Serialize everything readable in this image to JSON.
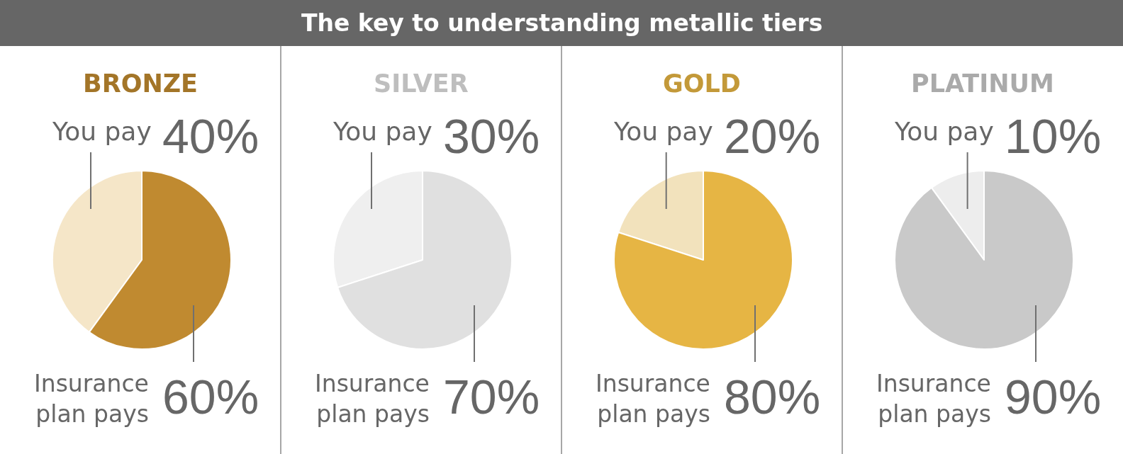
{
  "chart_data": [
    {
      "type": "other",
      "title": "The key to understanding metallic tiers"
    },
    {
      "type": "pie",
      "title": "BRONZE",
      "categories": [
        "You pay",
        "Insurance plan pays"
      ],
      "values": [
        40,
        60
      ],
      "colors": [
        "#f5e6c8",
        "#c08a30"
      ],
      "value_labels": [
        "40%",
        "60%"
      ]
    },
    {
      "type": "pie",
      "title": "SILVER",
      "categories": [
        "You pay",
        "Insurance plan pays"
      ],
      "values": [
        30,
        70
      ],
      "colors": [
        "#efefef",
        "#e0e0e0"
      ],
      "value_labels": [
        "30%",
        "70%"
      ]
    },
    {
      "type": "pie",
      "title": "GOLD",
      "categories": [
        "You pay",
        "Insurance plan pays"
      ],
      "values": [
        20,
        80
      ],
      "colors": [
        "#f2e2bc",
        "#e6b544"
      ],
      "value_labels": [
        "20%",
        "80%"
      ]
    },
    {
      "type": "pie",
      "title": "PLATINUM",
      "categories": [
        "You pay",
        "Insurance plan pays"
      ],
      "values": [
        10,
        90
      ],
      "colors": [
        "#ededed",
        "#c9c9c9"
      ],
      "value_labels": [
        "10%",
        "90%"
      ]
    }
  ]
}
